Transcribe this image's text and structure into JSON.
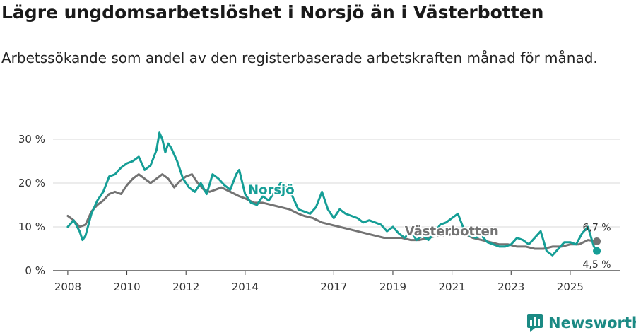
{
  "title": "Lägre ungdomsarbetslöshet i Norsjö än i Västerbotten",
  "subtitle": "Arbetssökande som andel av den registerbaserade arbetskraften månad för månad.",
  "brand": {
    "name": "Newsworthy",
    "color": "#1b8a84"
  },
  "chart_data": {
    "type": "line",
    "ylim": [
      0,
      30
    ],
    "xlim": [
      2007.5,
      2026.7
    ],
    "y_ticks": [
      0,
      10,
      20,
      30
    ],
    "y_tick_labels": [
      "0 %",
      "10 %",
      "20 %",
      "30 %"
    ],
    "x_ticks": [
      2008,
      2010,
      2012,
      2014,
      2017,
      2019,
      2021,
      2023,
      2025
    ],
    "x_tick_labels": [
      "2008",
      "2010",
      "2012",
      "2014",
      "2017",
      "2019",
      "2021",
      "2023",
      "2025"
    ],
    "grid": true,
    "series": [
      {
        "name": "Västerbotten",
        "color": "#737373",
        "end_label": "6,7 %",
        "x": [
          2008.0,
          2008.2,
          2008.4,
          2008.6,
          2008.8,
          2009.0,
          2009.2,
          2009.4,
          2009.6,
          2009.8,
          2010.0,
          2010.2,
          2010.4,
          2010.6,
          2010.8,
          2011.0,
          2011.2,
          2011.4,
          2011.6,
          2011.8,
          2012.0,
          2012.2,
          2012.4,
          2012.6,
          2012.8,
          2013.0,
          2013.2,
          2013.5,
          2013.8,
          2014.0,
          2014.3,
          2014.6,
          2014.9,
          2015.2,
          2015.5,
          2015.8,
          2016.0,
          2016.3,
          2016.6,
          2016.9,
          2017.2,
          2017.5,
          2017.8,
          2018.1,
          2018.4,
          2018.7,
          2019.0,
          2019.3,
          2019.6,
          2019.9,
          2020.2,
          2020.5,
          2020.8,
          2021.1,
          2021.4,
          2021.7,
          2022.0,
          2022.3,
          2022.6,
          2022.9,
          2023.2,
          2023.5,
          2023.8,
          2024.1,
          2024.4,
          2024.7,
          2025.0,
          2025.3,
          2025.6,
          2025.9
        ],
        "values": [
          12.5,
          11.5,
          10.0,
          10.5,
          13.5,
          15.0,
          16.0,
          17.5,
          18.0,
          17.5,
          19.5,
          21.0,
          22.0,
          21.0,
          20.0,
          21.0,
          22.0,
          21.0,
          19.0,
          20.5,
          21.5,
          22.0,
          20.0,
          18.5,
          18.0,
          18.5,
          19.0,
          18.0,
          17.0,
          16.5,
          15.5,
          15.5,
          15.0,
          14.5,
          14.0,
          13.0,
          12.5,
          12.0,
          11.0,
          10.5,
          10.0,
          9.5,
          9.0,
          8.5,
          8.0,
          7.5,
          7.5,
          7.5,
          7.0,
          7.0,
          7.5,
          8.0,
          8.0,
          8.5,
          8.5,
          7.5,
          7.0,
          6.5,
          6.0,
          6.0,
          5.5,
          5.5,
          5.0,
          5.0,
          5.5,
          5.5,
          6.0,
          6.0,
          7.0,
          6.7
        ]
      },
      {
        "name": "Norsjö",
        "color": "#159e96",
        "end_label": "4,5 %",
        "x": [
          2008.0,
          2008.2,
          2008.4,
          2008.5,
          2008.6,
          2008.8,
          2009.0,
          2009.2,
          2009.4,
          2009.6,
          2009.8,
          2010.0,
          2010.2,
          2010.4,
          2010.6,
          2010.8,
          2011.0,
          2011.1,
          2011.2,
          2011.3,
          2011.4,
          2011.5,
          2011.7,
          2011.9,
          2012.1,
          2012.3,
          2012.5,
          2012.7,
          2012.9,
          2013.1,
          2013.3,
          2013.5,
          2013.7,
          2013.8,
          2014.0,
          2014.2,
          2014.4,
          2014.6,
          2014.8,
          2015.0,
          2015.2,
          2015.4,
          2015.6,
          2015.8,
          2016.0,
          2016.2,
          2016.4,
          2016.6,
          2016.8,
          2017.0,
          2017.2,
          2017.4,
          2017.6,
          2017.8,
          2018.0,
          2018.2,
          2018.4,
          2018.6,
          2018.8,
          2019.0,
          2019.2,
          2019.4,
          2019.6,
          2019.8,
          2020.0,
          2020.2,
          2020.4,
          2020.6,
          2020.8,
          2021.0,
          2021.2,
          2021.4,
          2021.6,
          2021.8,
          2022.0,
          2022.2,
          2022.4,
          2022.6,
          2022.8,
          2023.0,
          2023.2,
          2023.4,
          2023.6,
          2023.8,
          2024.0,
          2024.2,
          2024.4,
          2024.6,
          2024.8,
          2025.0,
          2025.2,
          2025.4,
          2025.6,
          2025.8,
          2025.9
        ],
        "values": [
          10.0,
          11.5,
          9.0,
          7.0,
          8.0,
          13.0,
          16.0,
          18.0,
          21.5,
          22.0,
          23.5,
          24.5,
          25.0,
          26.0,
          23.0,
          24.0,
          27.5,
          31.5,
          30.0,
          27.0,
          29.0,
          28.0,
          25.0,
          21.0,
          19.0,
          18.0,
          20.0,
          17.5,
          22.0,
          21.0,
          19.5,
          18.5,
          22.0,
          23.0,
          17.5,
          15.5,
          15.0,
          17.0,
          16.0,
          18.0,
          20.0,
          19.0,
          17.0,
          14.0,
          13.5,
          13.0,
          14.5,
          18.0,
          14.0,
          12.0,
          14.0,
          13.0,
          12.5,
          12.0,
          11.0,
          11.5,
          11.0,
          10.5,
          9.0,
          10.0,
          8.5,
          7.5,
          9.0,
          7.0,
          8.0,
          7.0,
          8.5,
          10.5,
          11.0,
          12.0,
          13.0,
          9.5,
          8.0,
          7.5,
          8.0,
          6.5,
          6.0,
          5.5,
          5.5,
          6.0,
          7.5,
          7.0,
          6.0,
          7.5,
          9.0,
          4.5,
          3.5,
          5.0,
          6.5,
          6.5,
          6.0,
          8.5,
          10.0,
          5.5,
          4.5
        ]
      }
    ],
    "inline_labels": [
      {
        "series": "Norsjö",
        "text": "Norsjö",
        "at_x": 2014.1,
        "at_y": 18.5
      },
      {
        "series": "Västerbotten",
        "text": "Västerbotten",
        "at_x": 2019.4,
        "at_y": 9.0
      }
    ]
  }
}
